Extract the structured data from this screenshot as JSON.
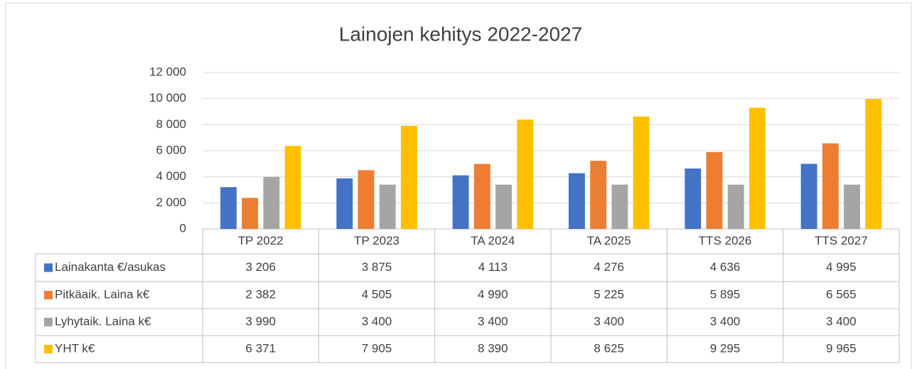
{
  "chart_data": {
    "type": "bar",
    "title": "Lainojen kehitys 2022-2027",
    "categories": [
      "TP 2022",
      "TP 2023",
      "TA 2024",
      "TA 2025",
      "TTS 2026",
      "TTS 2027"
    ],
    "series": [
      {
        "name": "Lainakanta €/asukas",
        "color": "#4472c4",
        "values": [
          3206,
          3875,
          4113,
          4276,
          4636,
          4995
        ],
        "value_labels": [
          "3 206",
          "3 875",
          "4 113",
          "4 276",
          "4 636",
          "4 995"
        ]
      },
      {
        "name": "Pitkäaik. Laina k€",
        "color": "#ed7d31",
        "values": [
          2382,
          4505,
          4990,
          5225,
          5895,
          6565
        ],
        "value_labels": [
          "2 382",
          "4 505",
          "4 990",
          "5 225",
          "5 895",
          "6 565"
        ]
      },
      {
        "name": "Lyhytaik. Laina k€",
        "color": "#a5a5a5",
        "values": [
          3990,
          3400,
          3400,
          3400,
          3400,
          3400
        ],
        "value_labels": [
          "3 990",
          "3 400",
          "3 400",
          "3 400",
          "3 400",
          "3 400"
        ]
      },
      {
        "name": "YHT k€",
        "color": "#ffc000",
        "values": [
          6371,
          7905,
          8390,
          8625,
          9295,
          9965
        ],
        "value_labels": [
          "6 371",
          "7 905",
          "8 390",
          "8 625",
          "9 295",
          "9 965"
        ]
      }
    ],
    "ylim": [
      0,
      12000
    ],
    "yticks": [
      0,
      {
        "value": 2000,
        "label": "2 000"
      },
      {
        "value": 4000,
        "label": "4 000"
      },
      {
        "value": 6000,
        "label": "6 000"
      },
      {
        "value": 8000,
        "label": "8 000"
      },
      {
        "value": 10000,
        "label": "10 000"
      },
      {
        "value": 12000,
        "label": "12 000"
      }
    ],
    "grid": true
  }
}
